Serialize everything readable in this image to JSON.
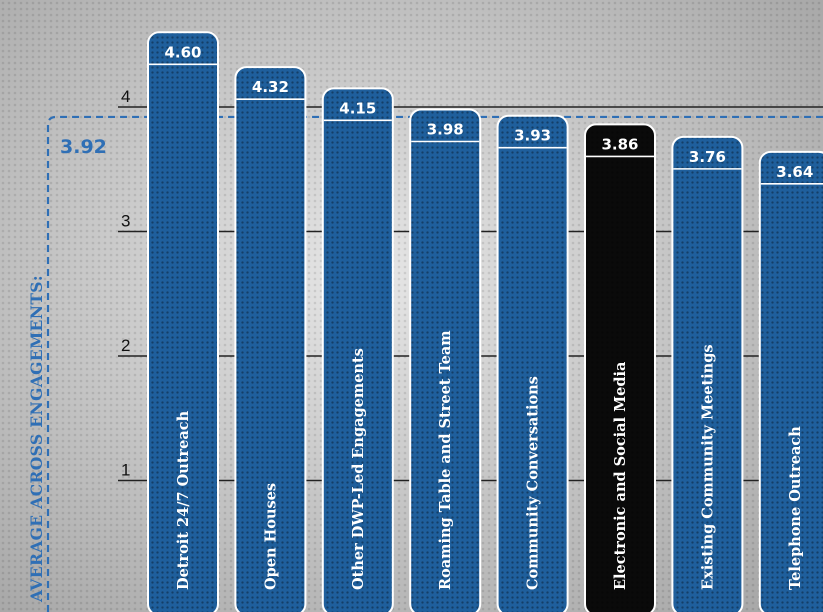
{
  "colors": {
    "accent": "#2f6fb5",
    "bar": "#1f5f9c",
    "bar_highlight": "#0a0a0a",
    "gridline": "#222222"
  },
  "chart_data": {
    "type": "bar",
    "orientation": "vertical",
    "categories": [
      "Detroit 24/7 Outreach",
      "Open Houses",
      "Other DWP-Led Engagements",
      "Roaming Table and Street Team",
      "Community Conversations",
      "Electronic and Social Media",
      "Existing Community Meetings",
      "Telephone Outreach"
    ],
    "values": [
      4.6,
      4.32,
      4.15,
      3.98,
      3.93,
      3.86,
      3.76,
      3.64
    ],
    "value_labels": [
      "4.60",
      "4.32",
      "4.15",
      "3.98",
      "3.93",
      "3.86",
      "3.76",
      "3.64"
    ],
    "highlight_index": 5,
    "yticks": [
      1,
      2,
      3,
      4
    ],
    "ylim": [
      0,
      4.6
    ],
    "grid": true,
    "average": {
      "label": "AVERAGE ACROSS ENGAGEMENTS:",
      "value": 3.92,
      "value_label": "3.92"
    }
  }
}
